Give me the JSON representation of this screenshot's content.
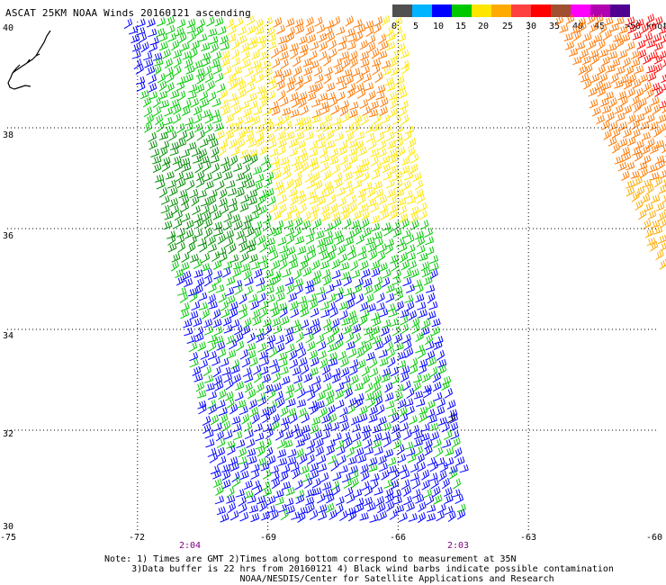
{
  "title": "ASCAT 25KM NOAA Winds 20160121 ascending",
  "scale": {
    "colors": [
      "#505050",
      "#00b4ff",
      "#0000ff",
      "#00c800",
      "#ffe600",
      "#ffaa00",
      "#ff4040",
      "#ff0000",
      "#a05030",
      "#ff00ff",
      "#b000b0",
      "#500090"
    ],
    "labels": [
      "0",
      "5",
      "10",
      "15",
      "20",
      "25",
      "30",
      "35",
      "40",
      "45"
    ],
    "units": ">50 knots"
  },
  "axes": {
    "lat_labels": [
      "40",
      "38",
      "36",
      "34",
      "32",
      "30"
    ],
    "lon_labels": [
      "-75",
      "-72",
      "-69",
      "-66",
      "-63",
      "-60"
    ]
  },
  "times": {
    "left": "2:04",
    "right": "2:03"
  },
  "notes": {
    "line1": "Note: 1) Times are GMT 2)Times along bottom correspond to measurement at 35N",
    "line2": "     3)Data buffer is 22 hrs from 20160121 4) Black wind barbs indicate possible contamination",
    "line3": "                         NOAA/NESDIS/Center for Satellite Applications and Research"
  },
  "map_data": {
    "lat_range": [
      30,
      40
    ],
    "lon_range": [
      -75,
      -60
    ],
    "grid_lats": [
      38,
      36,
      34,
      32
    ],
    "grid_lons": [
      -72,
      -69,
      -66,
      -63
    ],
    "swaths": [
      {
        "name": "main",
        "region_colors": {
          "north": "#ffe600",
          "northeast": "#ff7700",
          "middle": "#00c800",
          "dark": "#008c00",
          "south": "#0000ff"
        }
      },
      {
        "name": "east",
        "region_colors": {
          "west": "#ffaa00",
          "mid": "#ff7700",
          "core": "#ff0000"
        }
      }
    ]
  }
}
